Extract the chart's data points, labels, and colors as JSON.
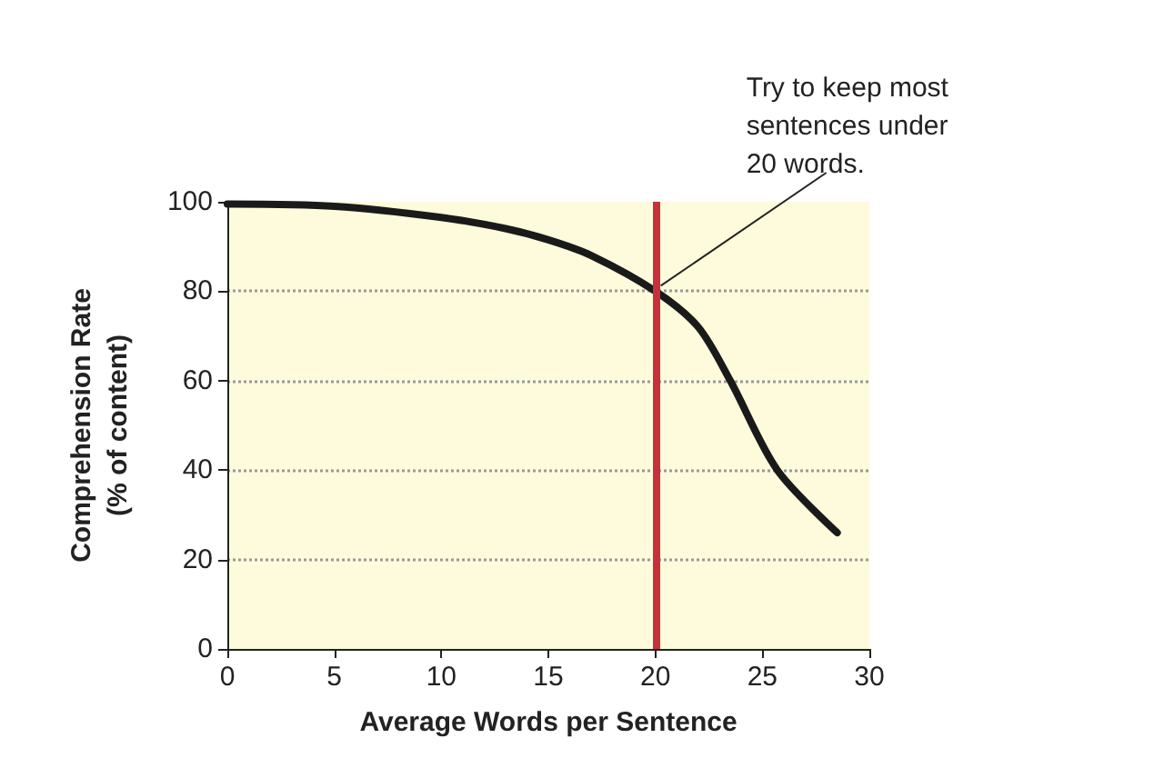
{
  "chart_data": {
    "type": "line",
    "xlabel": "Average Words per Sentence",
    "ylabel": "Comprehension Rate\n(% of content)",
    "x": [
      0,
      5,
      10,
      13,
      15,
      17,
      20,
      22,
      23.5,
      25.7,
      28.5
    ],
    "series": [
      {
        "color": "#1a1a1a",
        "values": [
          99.5,
          99,
          96.5,
          94,
          91.5,
          88,
          80,
          72,
          60,
          40,
          26
        ]
      }
    ],
    "xlim": [
      0,
      30
    ],
    "xticks": [
      0,
      5,
      10,
      15,
      20,
      25,
      30
    ],
    "ylim": [
      0,
      100
    ],
    "yticks": [
      0,
      20,
      40,
      60,
      80,
      100
    ],
    "grid": "y",
    "marker": "none",
    "line_style": "solid",
    "ref_lines": [
      {
        "axis": "x",
        "value": 20,
        "color": "#c8303a"
      }
    ],
    "annotations": [
      {
        "text": "Try to keep most\nsentences under\n20 words.",
        "x": 20,
        "y": 80
      }
    ]
  }
}
